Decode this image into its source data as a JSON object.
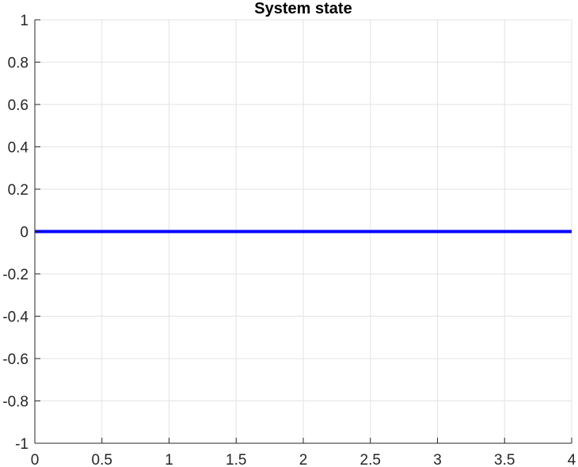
{
  "chart_data": {
    "type": "line",
    "title": "System state",
    "xlabel": "",
    "ylabel": "",
    "xlim": [
      0,
      4
    ],
    "ylim": [
      -1,
      1
    ],
    "grid": true,
    "x_ticks": [
      0,
      0.5,
      1,
      1.5,
      2,
      2.5,
      3,
      3.5,
      4
    ],
    "x_tick_labels": [
      "0",
      "0.5",
      "1",
      "1.5",
      "2",
      "2.5",
      "3",
      "3.5",
      "4"
    ],
    "y_ticks": [
      1,
      0.8,
      0.6,
      0.4,
      0.2,
      0,
      -0.2,
      -0.4,
      -0.6,
      -0.8,
      -1
    ],
    "y_tick_labels": [
      "1",
      "0.8",
      "0.6",
      "0.4",
      "0.2",
      "0",
      "-0.2",
      "-0.4",
      "-0.6",
      "-0.8",
      "-1"
    ],
    "series": [
      {
        "color": "#0000ff",
        "x": [
          0,
          4
        ],
        "y": [
          0,
          0
        ]
      }
    ]
  },
  "colors": {
    "grid": "#e3e3e3",
    "axis": "#262626",
    "line": "#0000ff"
  }
}
